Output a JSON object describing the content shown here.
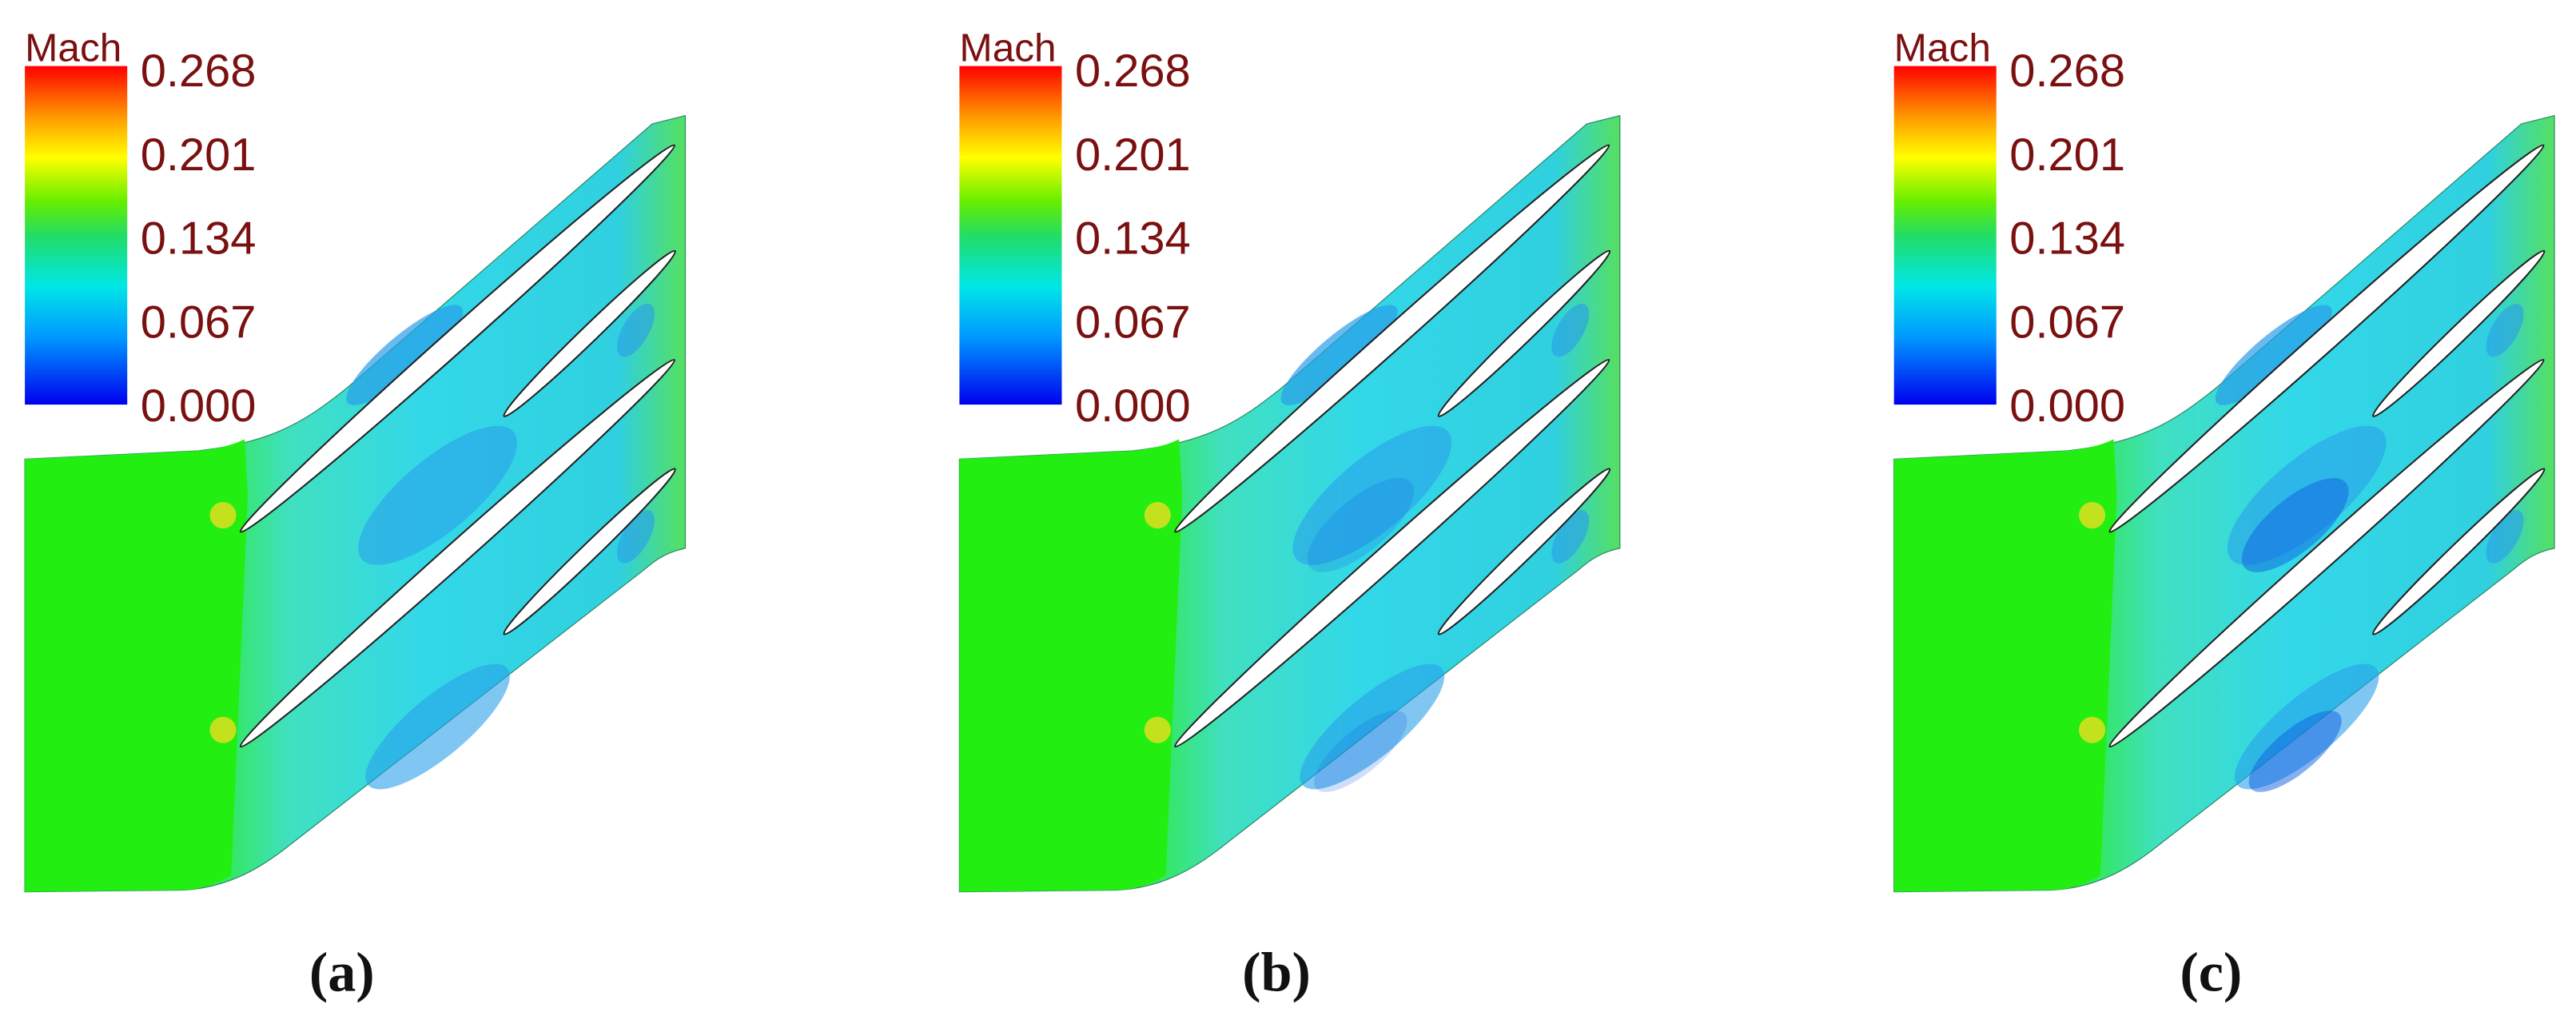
{
  "panels": [
    {
      "colorbar": {
        "title": "Mach",
        "ticks": [
          "0.268",
          "0.201",
          "0.134",
          "0.067",
          "0.000"
        ]
      },
      "caption": "(a)"
    },
    {
      "colorbar": {
        "title": "Mach",
        "ticks": [
          "0.268",
          "0.201",
          "0.134",
          "0.067",
          "0.000"
        ]
      },
      "caption": "(b)"
    },
    {
      "colorbar": {
        "title": "Mach",
        "ticks": [
          "0.268",
          "0.201",
          "0.134",
          "0.067",
          "0.000"
        ]
      },
      "caption": "(c)"
    }
  ]
}
